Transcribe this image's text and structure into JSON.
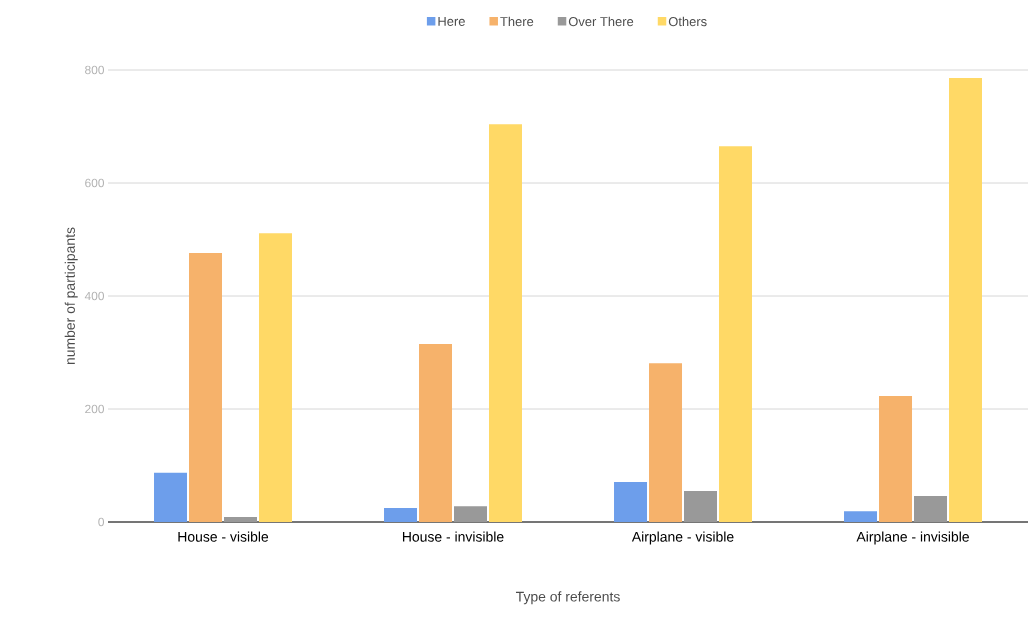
{
  "chart_data": {
    "type": "bar",
    "xlabel": "Type of referents",
    "ylabel": "number of participants",
    "categories": [
      "House - visible",
      "House - invisible",
      "Airplane - visible",
      "Airplane - invisible"
    ],
    "series": [
      {
        "name": "Here",
        "color": "#6d9eeb",
        "values": [
          87,
          25,
          71,
          19
        ]
      },
      {
        "name": "There",
        "color": "#f6b26b",
        "values": [
          476,
          315,
          281,
          223
        ]
      },
      {
        "name": "Over There",
        "color": "#999999",
        "values": [
          9,
          28,
          55,
          46
        ]
      },
      {
        "name": "Others",
        "color": "#ffd966",
        "values": [
          511,
          704,
          665,
          786
        ]
      }
    ],
    "ylim": [
      0,
      800
    ],
    "yticks": [
      0,
      200,
      400,
      600,
      800
    ],
    "grid": "y",
    "legend": "top"
  }
}
